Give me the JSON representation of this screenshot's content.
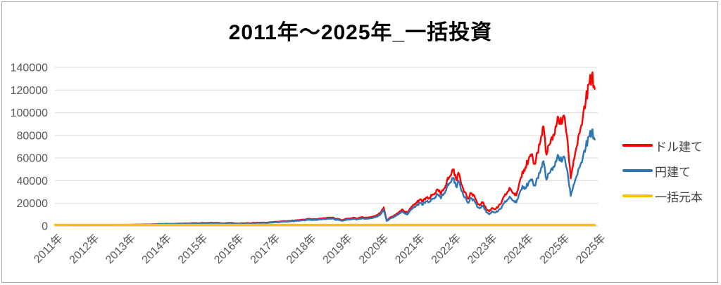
{
  "chart": {
    "title": "2011年～2025年_一括投資"
  },
  "colors": {
    "dollar_series": "#FF0000",
    "yen_series": "#2E75B6",
    "principal_series": "#FFC000",
    "axis_text": "#595959",
    "gridline": "#D9D9D9",
    "zero_axis_line": "#BFBFBF",
    "image_border": "#A6A6A6",
    "legend_text": "#404040",
    "title_text": "#000000"
  },
  "chart_data": {
    "type": "line",
    "title": "2011年～2025年_一括投資",
    "xlabel": "",
    "ylabel": "",
    "grid": true,
    "legend_position": "right",
    "ylim": [
      0,
      140000
    ],
    "y_ticks": [
      0,
      20000,
      40000,
      60000,
      80000,
      100000,
      120000,
      140000
    ],
    "x_labels": [
      "2011年",
      "2012年",
      "2013年",
      "2014年",
      "2015年",
      "2016年",
      "2017年",
      "2018年",
      "2019年",
      "2020年",
      "2021年",
      "2022年",
      "2023年",
      "2024年",
      "2025年",
      "2025年"
    ],
    "x_start_year": 2011,
    "points_per_year": 12,
    "series": [
      {
        "key": "dollar",
        "name": "ドル建て",
        "color": "#FF0000",
        "values": [
          1000,
          1030,
          1010,
          1070,
          1040,
          980,
          1010,
          820,
          760,
          900,
          870,
          830,
          900,
          990,
          1060,
          1000,
          900,
          960,
          1010,
          1080,
          1140,
          1080,
          1050,
          1080,
          1160,
          1200,
          1260,
          1320,
          1400,
          1350,
          1480,
          1440,
          1560,
          1700,
          1820,
          1900,
          1800,
          1980,
          1940,
          1900,
          2060,
          2200,
          2150,
          2350,
          2300,
          2450,
          2650,
          2600,
          2480,
          2800,
          2750,
          2850,
          2950,
          2800,
          3000,
          2450,
          2350,
          2750,
          2850,
          2750,
          2300,
          2250,
          2550,
          2500,
          2650,
          2600,
          2900,
          3000,
          3050,
          3000,
          3100,
          3200,
          3450,
          3700,
          3850,
          4050,
          4350,
          4250,
          4600,
          4800,
          4850,
          5300,
          5500,
          5600,
          6300,
          5900,
          6100,
          6150,
          6700,
          6900,
          7000,
          7600,
          7500,
          6300,
          6200,
          5300,
          5900,
          6400,
          6800,
          7500,
          6500,
          7300,
          7800,
          7300,
          7500,
          8000,
          8800,
          9600,
          12000,
          16500,
          5000,
          7000,
          8500,
          10000,
          12000,
          14500,
          12500,
          12000,
          16000,
          18500,
          21000,
          23500,
          21500,
          25000,
          24000,
          27000,
          29000,
          32000,
          28000,
          33000,
          40000,
          44000,
          50000,
          41000,
          46000,
          36000,
          30000,
          24000,
          29000,
          27000,
          20000,
          19000,
          21000,
          15000,
          13000,
          16000,
          15000,
          17000,
          20000,
          26000,
          30000,
          33000,
          29000,
          27000,
          38000,
          48000,
          52000,
          58000,
          62000,
          55000,
          65000,
          75000,
          88000,
          63000,
          72000,
          76000,
          88000,
          95000,
          90000,
          96000,
          75000,
          42000,
          58000,
          70000,
          82000,
          95000,
          110000,
          125000,
          132000,
          121000
        ]
      },
      {
        "key": "yen",
        "name": "円建て",
        "color": "#2E75B6",
        "values": [
          1000,
          1010,
          980,
          1030,
          990,
          930,
          950,
          750,
          680,
          810,
          780,
          740,
          810,
          890,
          960,
          900,
          810,
          870,
          920,
          990,
          1040,
          990,
          960,
          990,
          1100,
          1140,
          1200,
          1250,
          1330,
          1280,
          1410,
          1370,
          1480,
          1620,
          1730,
          1810,
          1690,
          1860,
          1820,
          1780,
          1940,
          2070,
          2020,
          2210,
          2160,
          2300,
          2490,
          2440,
          2310,
          2600,
          2560,
          2650,
          2740,
          2600,
          2790,
          2280,
          2190,
          2560,
          2650,
          2560,
          2070,
          2030,
          2300,
          2250,
          2390,
          2340,
          2610,
          2700,
          2750,
          2700,
          2790,
          2880,
          3110,
          3330,
          3470,
          3650,
          3920,
          3830,
          4140,
          4320,
          4370,
          4770,
          4950,
          5040,
          5540,
          5190,
          5370,
          5410,
          5900,
          6070,
          6160,
          6690,
          6600,
          5540,
          5460,
          4660,
          5130,
          5570,
          5920,
          6530,
          5660,
          6350,
          6790,
          6350,
          6530,
          6960,
          7660,
          8350,
          10560,
          14520,
          4400,
          6160,
          7480,
          8800,
          10560,
          12760,
          11000,
          10560,
          14080,
          16280,
          18270,
          20450,
          18710,
          21750,
          20880,
          23490,
          25230,
          27840,
          24360,
          28710,
          34800,
          38280,
          42500,
          34850,
          39100,
          30600,
          25500,
          20400,
          24650,
          22950,
          17000,
          16150,
          17850,
          12750,
          10400,
          12800,
          12000,
          13260,
          15600,
          20280,
          23100,
          25410,
          22330,
          20790,
          28500,
          35520,
          33800,
          37700,
          40300,
          35750,
          42250,
          48750,
          57200,
          41000,
          46800,
          49400,
          57200,
          61750,
          56700,
          60480,
          47250,
          26500,
          36500,
          44100,
          51700,
          59850,
          69300,
          78750,
          83160,
          76230
        ]
      },
      {
        "key": "principal",
        "name": "一括元本",
        "color": "#FFC000",
        "constant": 1000
      }
    ]
  }
}
